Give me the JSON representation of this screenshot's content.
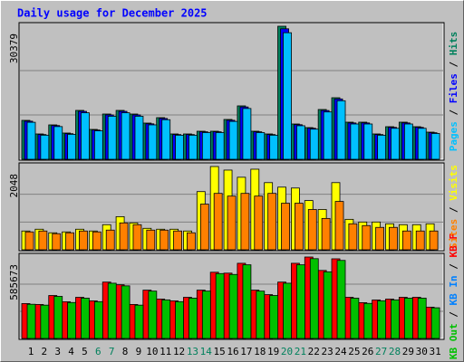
{
  "chart_data": [
    {
      "type": "bar",
      "title": "Daily usage for December 2025",
      "categories": [
        "1",
        "2",
        "3",
        "4",
        "5",
        "6",
        "7",
        "8",
        "9",
        "10",
        "11",
        "12",
        "13",
        "14",
        "15",
        "16",
        "17",
        "18",
        "19",
        "20",
        "21",
        "22",
        "23",
        "24",
        "25",
        "26",
        "27",
        "28",
        "29",
        "30",
        "31"
      ],
      "weekend": [
        "6",
        "7",
        "13",
        "14",
        "20",
        "21",
        "27",
        "28"
      ],
      "weekend_color": "#00805c",
      "legend_separator": "/",
      "ylim": [
        0,
        30379
      ],
      "yticks": [
        30379
      ],
      "grid_divisions": 3,
      "series": [
        {
          "name": "Hits",
          "color": "#00805c",
          "values": [
            8888,
            5788,
            7855,
            5994,
            11162,
            6821,
            10335,
            11162,
            10335,
            8268,
            9508,
            5788,
            5788,
            6408,
            6408,
            9095,
            12195,
            6408,
            5788,
            30379,
            8061,
            7235,
            11369,
            14056,
            8475,
            8475,
            5788,
            7441,
            8475,
            7441,
            6201
          ]
        },
        {
          "name": "Files",
          "color": "#0000ff",
          "values": [
            8700,
            5650,
            7700,
            5850,
            10950,
            6680,
            10130,
            10950,
            10130,
            8100,
            9320,
            5650,
            5650,
            6280,
            6280,
            8910,
            11950,
            6280,
            5650,
            29800,
            7900,
            7090,
            11140,
            13780,
            8300,
            8300,
            5650,
            7290,
            8300,
            7290,
            6070
          ]
        },
        {
          "name": "Pages",
          "color": "#00c0ff",
          "values": [
            8450,
            5500,
            7470,
            5700,
            10620,
            6490,
            9830,
            10620,
            9830,
            7860,
            9040,
            5500,
            5500,
            6100,
            6100,
            8650,
            11600,
            6100,
            5500,
            28900,
            7660,
            6880,
            10810,
            13370,
            8060,
            8060,
            5500,
            7070,
            8060,
            7070,
            5890
          ]
        }
      ]
    },
    {
      "type": "bar",
      "legend_separator": "/",
      "ylim": [
        0,
        2048
      ],
      "yticks": [
        2048
      ],
      "grid_divisions": 3,
      "series": [
        {
          "name": "Visits",
          "color": "#ffff00",
          "values": [
            462,
            506,
            418,
            440,
            506,
            462,
            617,
            815,
            661,
            528,
            506,
            506,
            462,
            1431,
            2048,
            1960,
            1784,
            1982,
            1652,
            1541,
            1519,
            1211,
            991,
            1652,
            749,
            683,
            683,
            639,
            617,
            617,
            639
          ]
        },
        {
          "name": "Sites",
          "color": "#ff8000",
          "values": [
            440,
            462,
            396,
            418,
            462,
            440,
            484,
            661,
            617,
            484,
            484,
            462,
            418,
            1123,
            1387,
            1321,
            1387,
            1321,
            1387,
            1145,
            1145,
            991,
            771,
            1189,
            639,
            595,
            551,
            551,
            462,
            462,
            462
          ]
        }
      ]
    },
    {
      "type": "bar",
      "legend_separator": "/",
      "ylim": [
        0,
        585673
      ],
      "yticks": [
        585673
      ],
      "grid_divisions": 3,
      "series": [
        {
          "name": "KB F",
          "color": "#ff0000",
          "values": [
            251004,
            244568,
            308928,
            263876,
            296056,
            270312,
            405468,
            386160,
            244568,
            347544,
            283184,
            270312,
            296056,
            347544,
            476264,
            469828,
            540624,
            347544,
            315364,
            405468,
            540624,
            585673,
            489136,
            572804,
            296056,
            257440,
            276748,
            283184,
            296056,
            296056,
            225260
          ]
        },
        {
          "name": "KB In",
          "color": "#0080ff",
          "values": [
            0,
            0,
            0,
            0,
            0,
            0,
            0,
            0,
            0,
            0,
            0,
            0,
            0,
            0,
            0,
            0,
            0,
            0,
            0,
            0,
            0,
            0,
            0,
            0,
            0,
            0,
            0,
            0,
            0,
            0,
            0
          ]
        },
        {
          "name": "KB Out",
          "color": "#00c000",
          "values": [
            246000,
            239700,
            302700,
            258600,
            290100,
            264900,
            397400,
            378400,
            239700,
            340600,
            277500,
            264900,
            290100,
            340600,
            466700,
            460400,
            529800,
            340600,
            309100,
            397400,
            529800,
            573900,
            479300,
            561300,
            290100,
            252300,
            271200,
            277500,
            290100,
            290100,
            220800
          ]
        }
      ]
    }
  ]
}
